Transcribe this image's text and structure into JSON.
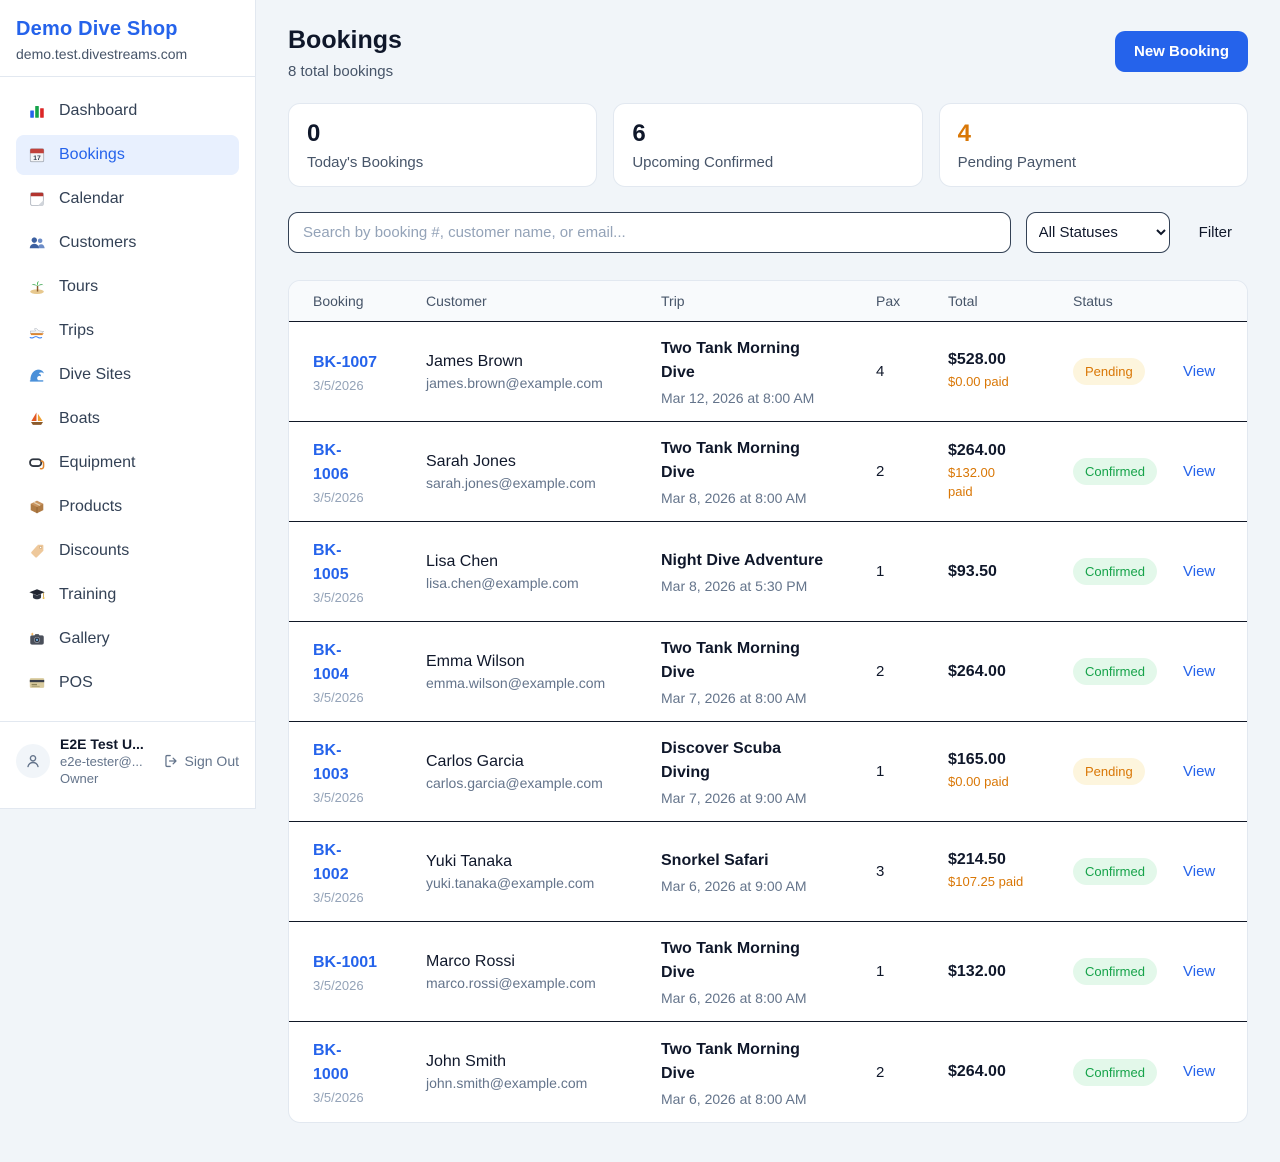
{
  "app": {
    "name": "Demo Dive Shop",
    "domain": "demo.test.divestreams.com"
  },
  "sidebar": {
    "items": [
      {
        "label": "Dashboard",
        "icon": "dashboard-icon",
        "active": false
      },
      {
        "label": "Bookings",
        "icon": "bookings-calendar-icon",
        "active": true
      },
      {
        "label": "Calendar",
        "icon": "calendar-icon",
        "active": false
      },
      {
        "label": "Customers",
        "icon": "customers-icon",
        "active": false
      },
      {
        "label": "Tours",
        "icon": "tours-island-icon",
        "active": false
      },
      {
        "label": "Trips",
        "icon": "trips-speedboat-icon",
        "active": false
      },
      {
        "label": "Dive Sites",
        "icon": "dive-sites-wave-icon",
        "active": false
      },
      {
        "label": "Boats",
        "icon": "boats-sailboat-icon",
        "active": false
      },
      {
        "label": "Equipment",
        "icon": "equipment-mask-icon",
        "active": false
      },
      {
        "label": "Products",
        "icon": "products-box-icon",
        "active": false
      },
      {
        "label": "Discounts",
        "icon": "discounts-tag-icon",
        "active": false
      },
      {
        "label": "Training",
        "icon": "training-cap-icon",
        "active": false
      },
      {
        "label": "Gallery",
        "icon": "gallery-camera-icon",
        "active": false
      },
      {
        "label": "POS",
        "icon": "pos-card-icon",
        "active": false
      }
    ],
    "user": {
      "name": "E2E Test U...",
      "email": "e2e-tester@...",
      "role": "Owner",
      "sign_out_label": "Sign Out"
    }
  },
  "header": {
    "title": "Bookings",
    "subtitle": "8 total bookings",
    "new_booking_label": "New Booking"
  },
  "stats": {
    "cards": [
      {
        "value": "0",
        "label": "Today's Bookings",
        "accent": "default"
      },
      {
        "value": "6",
        "label": "Upcoming Confirmed",
        "accent": "default"
      },
      {
        "value": "4",
        "label": "Pending Payment",
        "accent": "warning"
      }
    ]
  },
  "filters": {
    "search_placeholder": "Search by booking #, customer name, or email...",
    "status_selected": "All Statuses",
    "filter_label": "Filter"
  },
  "table": {
    "columns": [
      "Booking",
      "Customer",
      "Trip",
      "Pax",
      "Total",
      "Status"
    ],
    "view_label": "View",
    "rows": [
      {
        "booking_lines": [
          "BK-1007"
        ],
        "booking_date": "3/5/2026",
        "customer_name": "James Brown",
        "customer_email": "james.brown@example.com",
        "trip_lines": [
          "Two Tank Morning",
          "Dive"
        ],
        "trip_datetime": "Mar 12, 2026 at 8:00 AM",
        "pax": "4",
        "total": "$528.00",
        "paid_lines": [
          "$0.00 paid"
        ],
        "status": "Pending",
        "status_key": "pending"
      },
      {
        "booking_lines": [
          "BK-",
          "1006"
        ],
        "booking_date": "3/5/2026",
        "customer_name": "Sarah Jones",
        "customer_email": "sarah.jones@example.com",
        "trip_lines": [
          "Two Tank Morning",
          "Dive"
        ],
        "trip_datetime": "Mar 8, 2026 at 8:00 AM",
        "pax": "2",
        "total": "$264.00",
        "paid_lines": [
          "$132.00",
          "paid"
        ],
        "status": "Confirmed",
        "status_key": "confirmed"
      },
      {
        "booking_lines": [
          "BK-",
          "1005"
        ],
        "booking_date": "3/5/2026",
        "customer_name": "Lisa Chen",
        "customer_email": "lisa.chen@example.com",
        "trip_lines": [
          "Night Dive Adventure"
        ],
        "trip_datetime": "Mar 8, 2026 at 5:30 PM",
        "pax": "1",
        "total": "$93.50",
        "status": "Confirmed",
        "status_key": "confirmed"
      },
      {
        "booking_lines": [
          "BK-",
          "1004"
        ],
        "booking_date": "3/5/2026",
        "customer_name": "Emma Wilson",
        "customer_email": "emma.wilson@example.com",
        "trip_lines": [
          "Two Tank Morning",
          "Dive"
        ],
        "trip_datetime": "Mar 7, 2026 at 8:00 AM",
        "pax": "2",
        "total": "$264.00",
        "status": "Confirmed",
        "status_key": "confirmed"
      },
      {
        "booking_lines": [
          "BK-",
          "1003"
        ],
        "booking_date": "3/5/2026",
        "customer_name": "Carlos Garcia",
        "customer_email": "carlos.garcia@example.com",
        "trip_lines": [
          "Discover Scuba",
          "Diving"
        ],
        "trip_datetime": "Mar 7, 2026 at 9:00 AM",
        "pax": "1",
        "total": "$165.00",
        "paid_lines": [
          "$0.00 paid"
        ],
        "status": "Pending",
        "status_key": "pending"
      },
      {
        "booking_lines": [
          "BK-",
          "1002"
        ],
        "booking_date": "3/5/2026",
        "customer_name": "Yuki Tanaka",
        "customer_email": "yuki.tanaka@example.com",
        "trip_lines": [
          "Snorkel Safari"
        ],
        "trip_datetime": "Mar 6, 2026 at 9:00 AM",
        "pax": "3",
        "total": "$214.50",
        "paid_lines": [
          "$107.25 paid"
        ],
        "status": "Confirmed",
        "status_key": "confirmed"
      },
      {
        "booking_lines": [
          "BK-1001"
        ],
        "booking_date": "3/5/2026",
        "customer_name": "Marco Rossi",
        "customer_email": "marco.rossi@example.com",
        "trip_lines": [
          "Two Tank Morning",
          "Dive"
        ],
        "trip_datetime": "Mar 6, 2026 at 8:00 AM",
        "pax": "1",
        "total": "$132.00",
        "status": "Confirmed",
        "status_key": "confirmed"
      },
      {
        "booking_lines": [
          "BK-",
          "1000"
        ],
        "booking_date": "3/5/2026",
        "customer_name": "John Smith",
        "customer_email": "john.smith@example.com",
        "trip_lines": [
          "Two Tank Morning",
          "Dive"
        ],
        "trip_datetime": "Mar 6, 2026 at 8:00 AM",
        "pax": "2",
        "total": "$264.00",
        "status": "Confirmed",
        "status_key": "confirmed"
      }
    ]
  },
  "colors": {
    "accent_blue": "#2563eb",
    "warning_orange": "#d97706",
    "success_green": "#16a34a",
    "pending_badge_bg": "#fdf5dd",
    "confirmed_badge_bg": "#e3f8ea"
  }
}
